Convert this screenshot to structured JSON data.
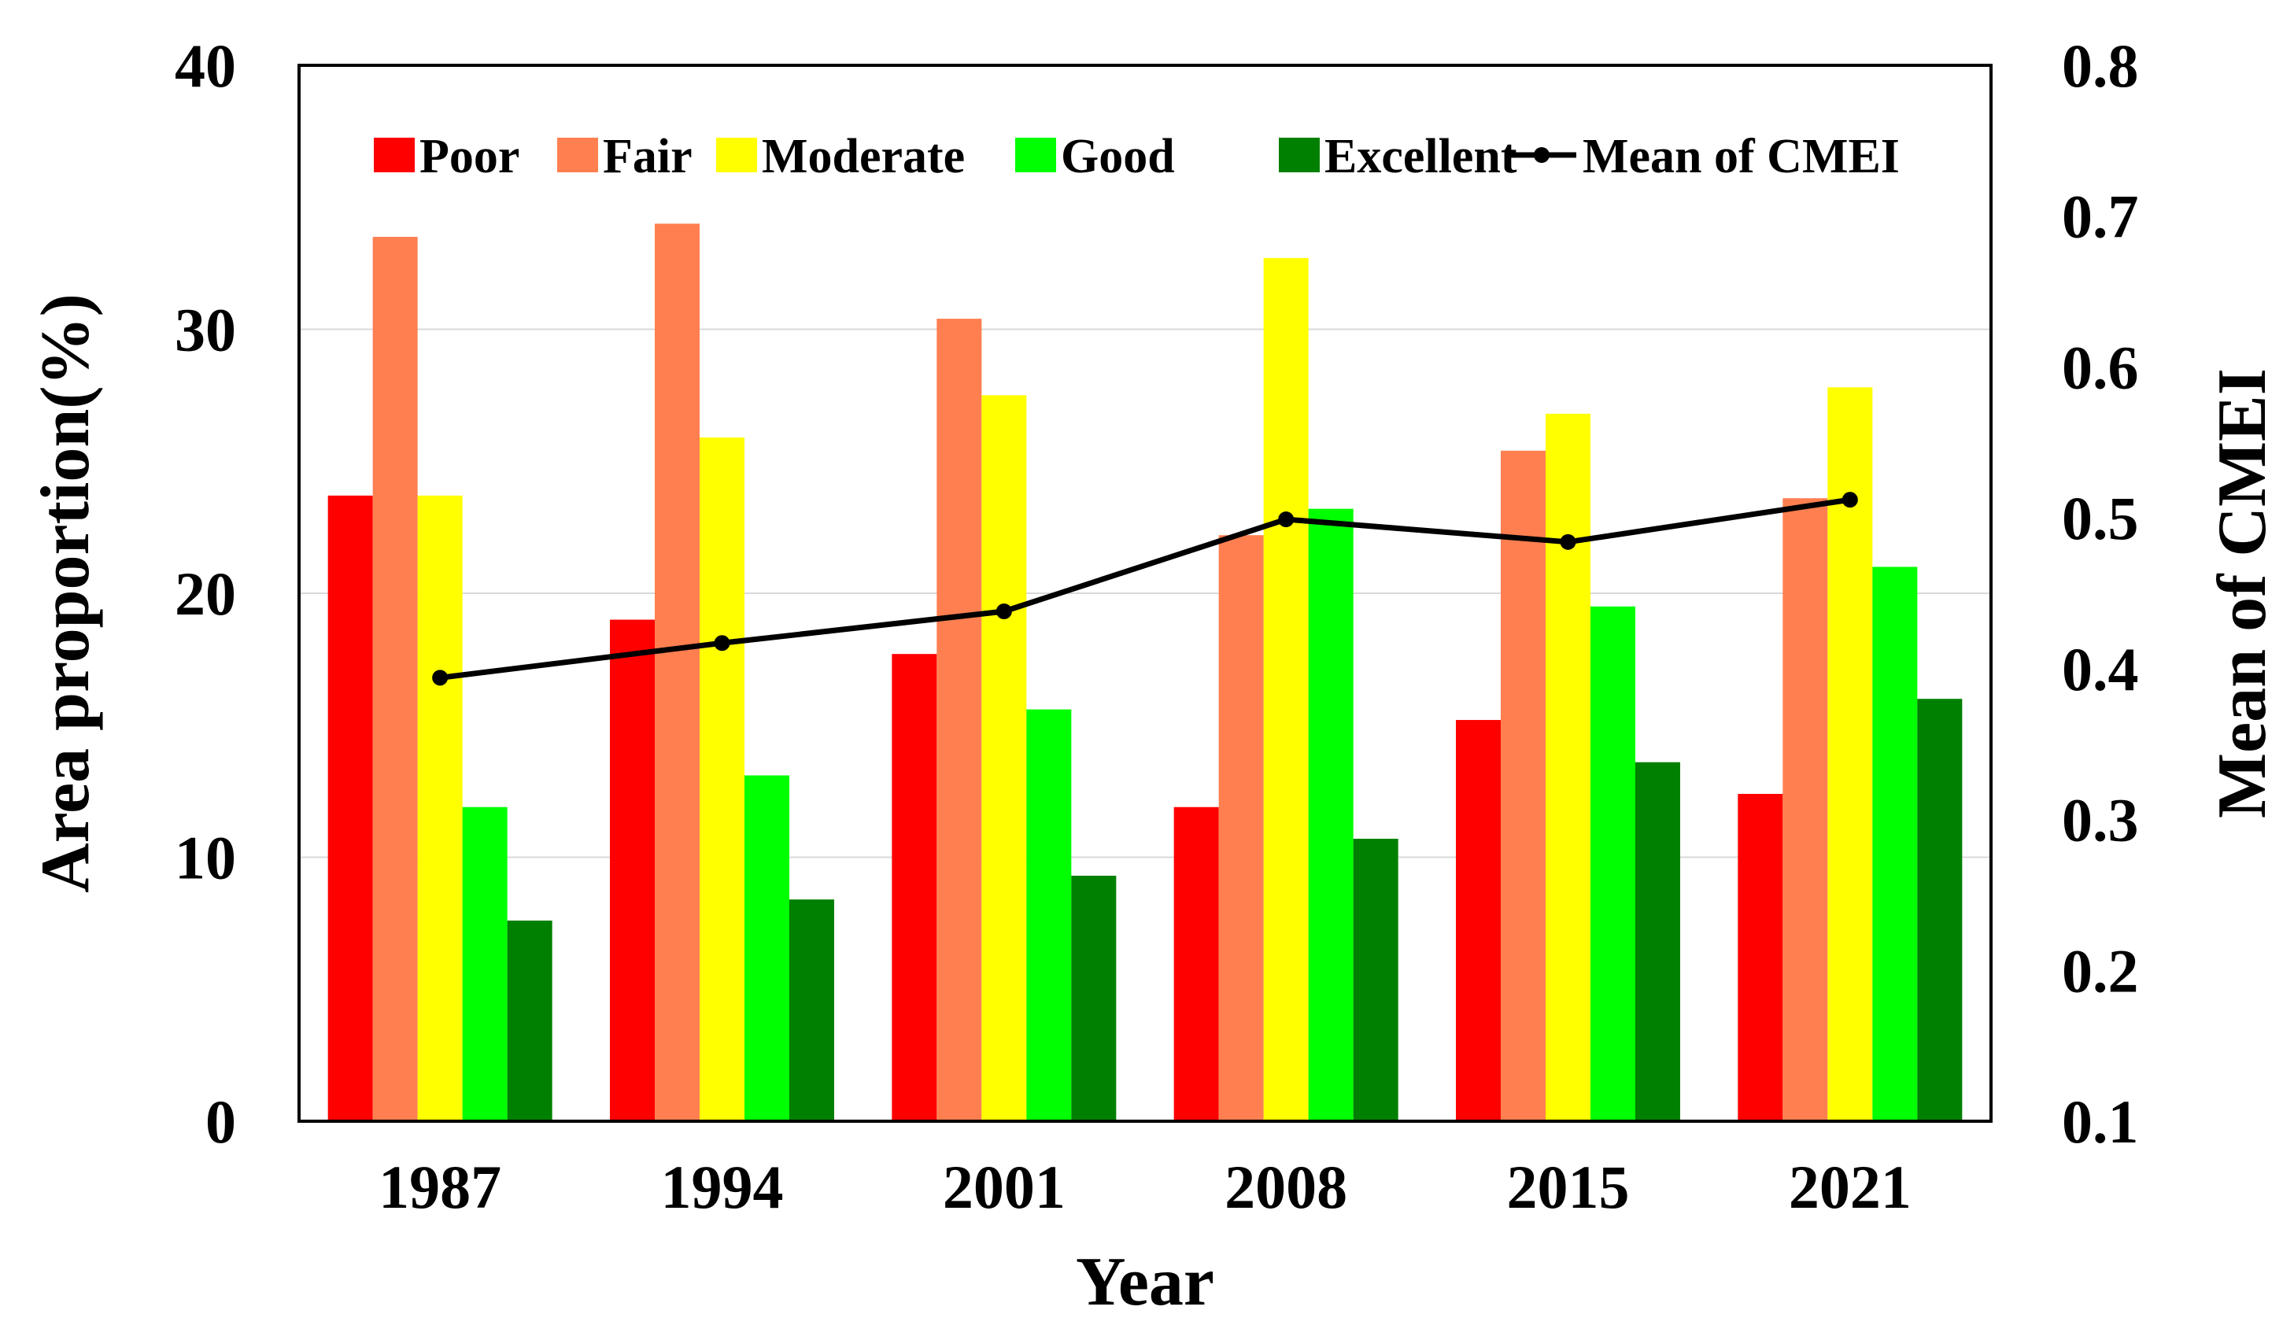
{
  "chart_data": {
    "type": "bar",
    "categories": [
      "1987",
      "1994",
      "2001",
      "2008",
      "2015",
      "2021"
    ],
    "series": [
      {
        "name": "Poor",
        "color": "#ff0000",
        "values": [
          23.7,
          19.0,
          17.7,
          11.9,
          15.2,
          12.4
        ]
      },
      {
        "name": "Fair",
        "color": "#ff7f50",
        "values": [
          33.5,
          34.0,
          30.4,
          22.2,
          25.4,
          23.6
        ]
      },
      {
        "name": "Moderate",
        "color": "#ffff00",
        "values": [
          23.7,
          25.9,
          27.5,
          32.7,
          26.8,
          27.8
        ]
      },
      {
        "name": "Good",
        "color": "#00ff00",
        "values": [
          11.9,
          13.1,
          15.6,
          23.2,
          19.5,
          21.0
        ]
      },
      {
        "name": "Excellent",
        "color": "#008000",
        "values": [
          7.6,
          8.4,
          9.3,
          10.7,
          13.6,
          16.0
        ]
      }
    ],
    "line_series": {
      "name": "Mean of CMEI",
      "color": "#000000",
      "values": [
        0.394,
        0.417,
        0.438,
        0.499,
        0.484,
        0.512
      ]
    },
    "xlabel": "Year",
    "ylabel": "Area proportion(%)",
    "y2label": "Mean of CMEI",
    "ylim": [
      0,
      40
    ],
    "y2lim": [
      0.1,
      0.8
    ],
    "yticks": [
      "0",
      "10",
      "20",
      "30",
      "40"
    ],
    "y2ticks": [
      "0.1",
      "0.2",
      "0.3",
      "0.4",
      "0.5",
      "0.6",
      "0.7",
      "0.8"
    ],
    "grid": true,
    "legend_position": "top"
  }
}
